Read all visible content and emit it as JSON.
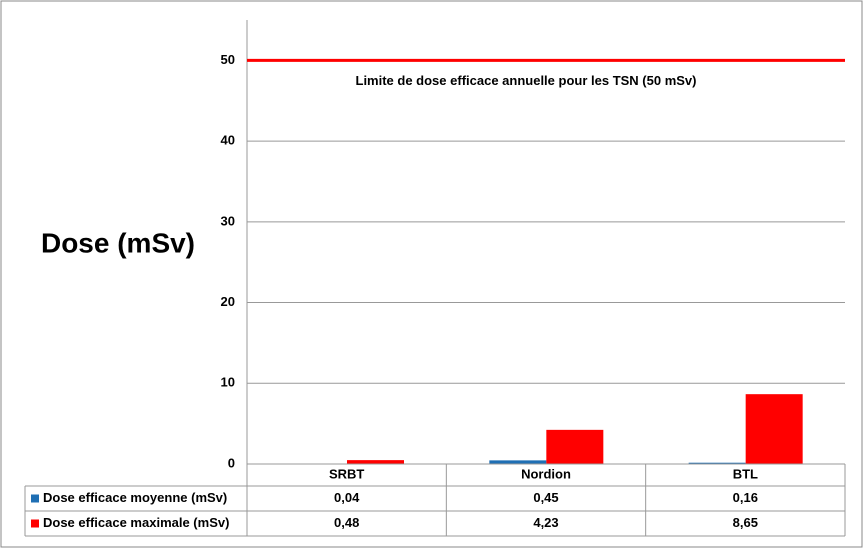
{
  "chart_data": {
    "type": "bar",
    "y_label": "Dose (mSv)",
    "categories": [
      "SRBT",
      "Nordion",
      "BTL"
    ],
    "series": [
      {
        "name": "Dose efficace moyenne (mSv)",
        "color": "#1f6fb4",
        "values": [
          0.04,
          0.45,
          0.16
        ],
        "value_labels": [
          "0,04",
          "0,45",
          "0,16"
        ]
      },
      {
        "name": "Dose efficace maximale (mSv)",
        "color": "#ff0000",
        "values": [
          0.48,
          4.23,
          8.65
        ],
        "value_labels": [
          "0,48",
          "4,23",
          "8,65"
        ]
      }
    ],
    "ylim": [
      0,
      55
    ],
    "yticks": [
      0,
      10,
      20,
      30,
      40,
      50
    ],
    "grid": true,
    "reference_line": {
      "value": 50,
      "label": "Limite de dose efficace annuelle pour les TSN  (50 mSv)",
      "color": "#ff0000"
    }
  }
}
